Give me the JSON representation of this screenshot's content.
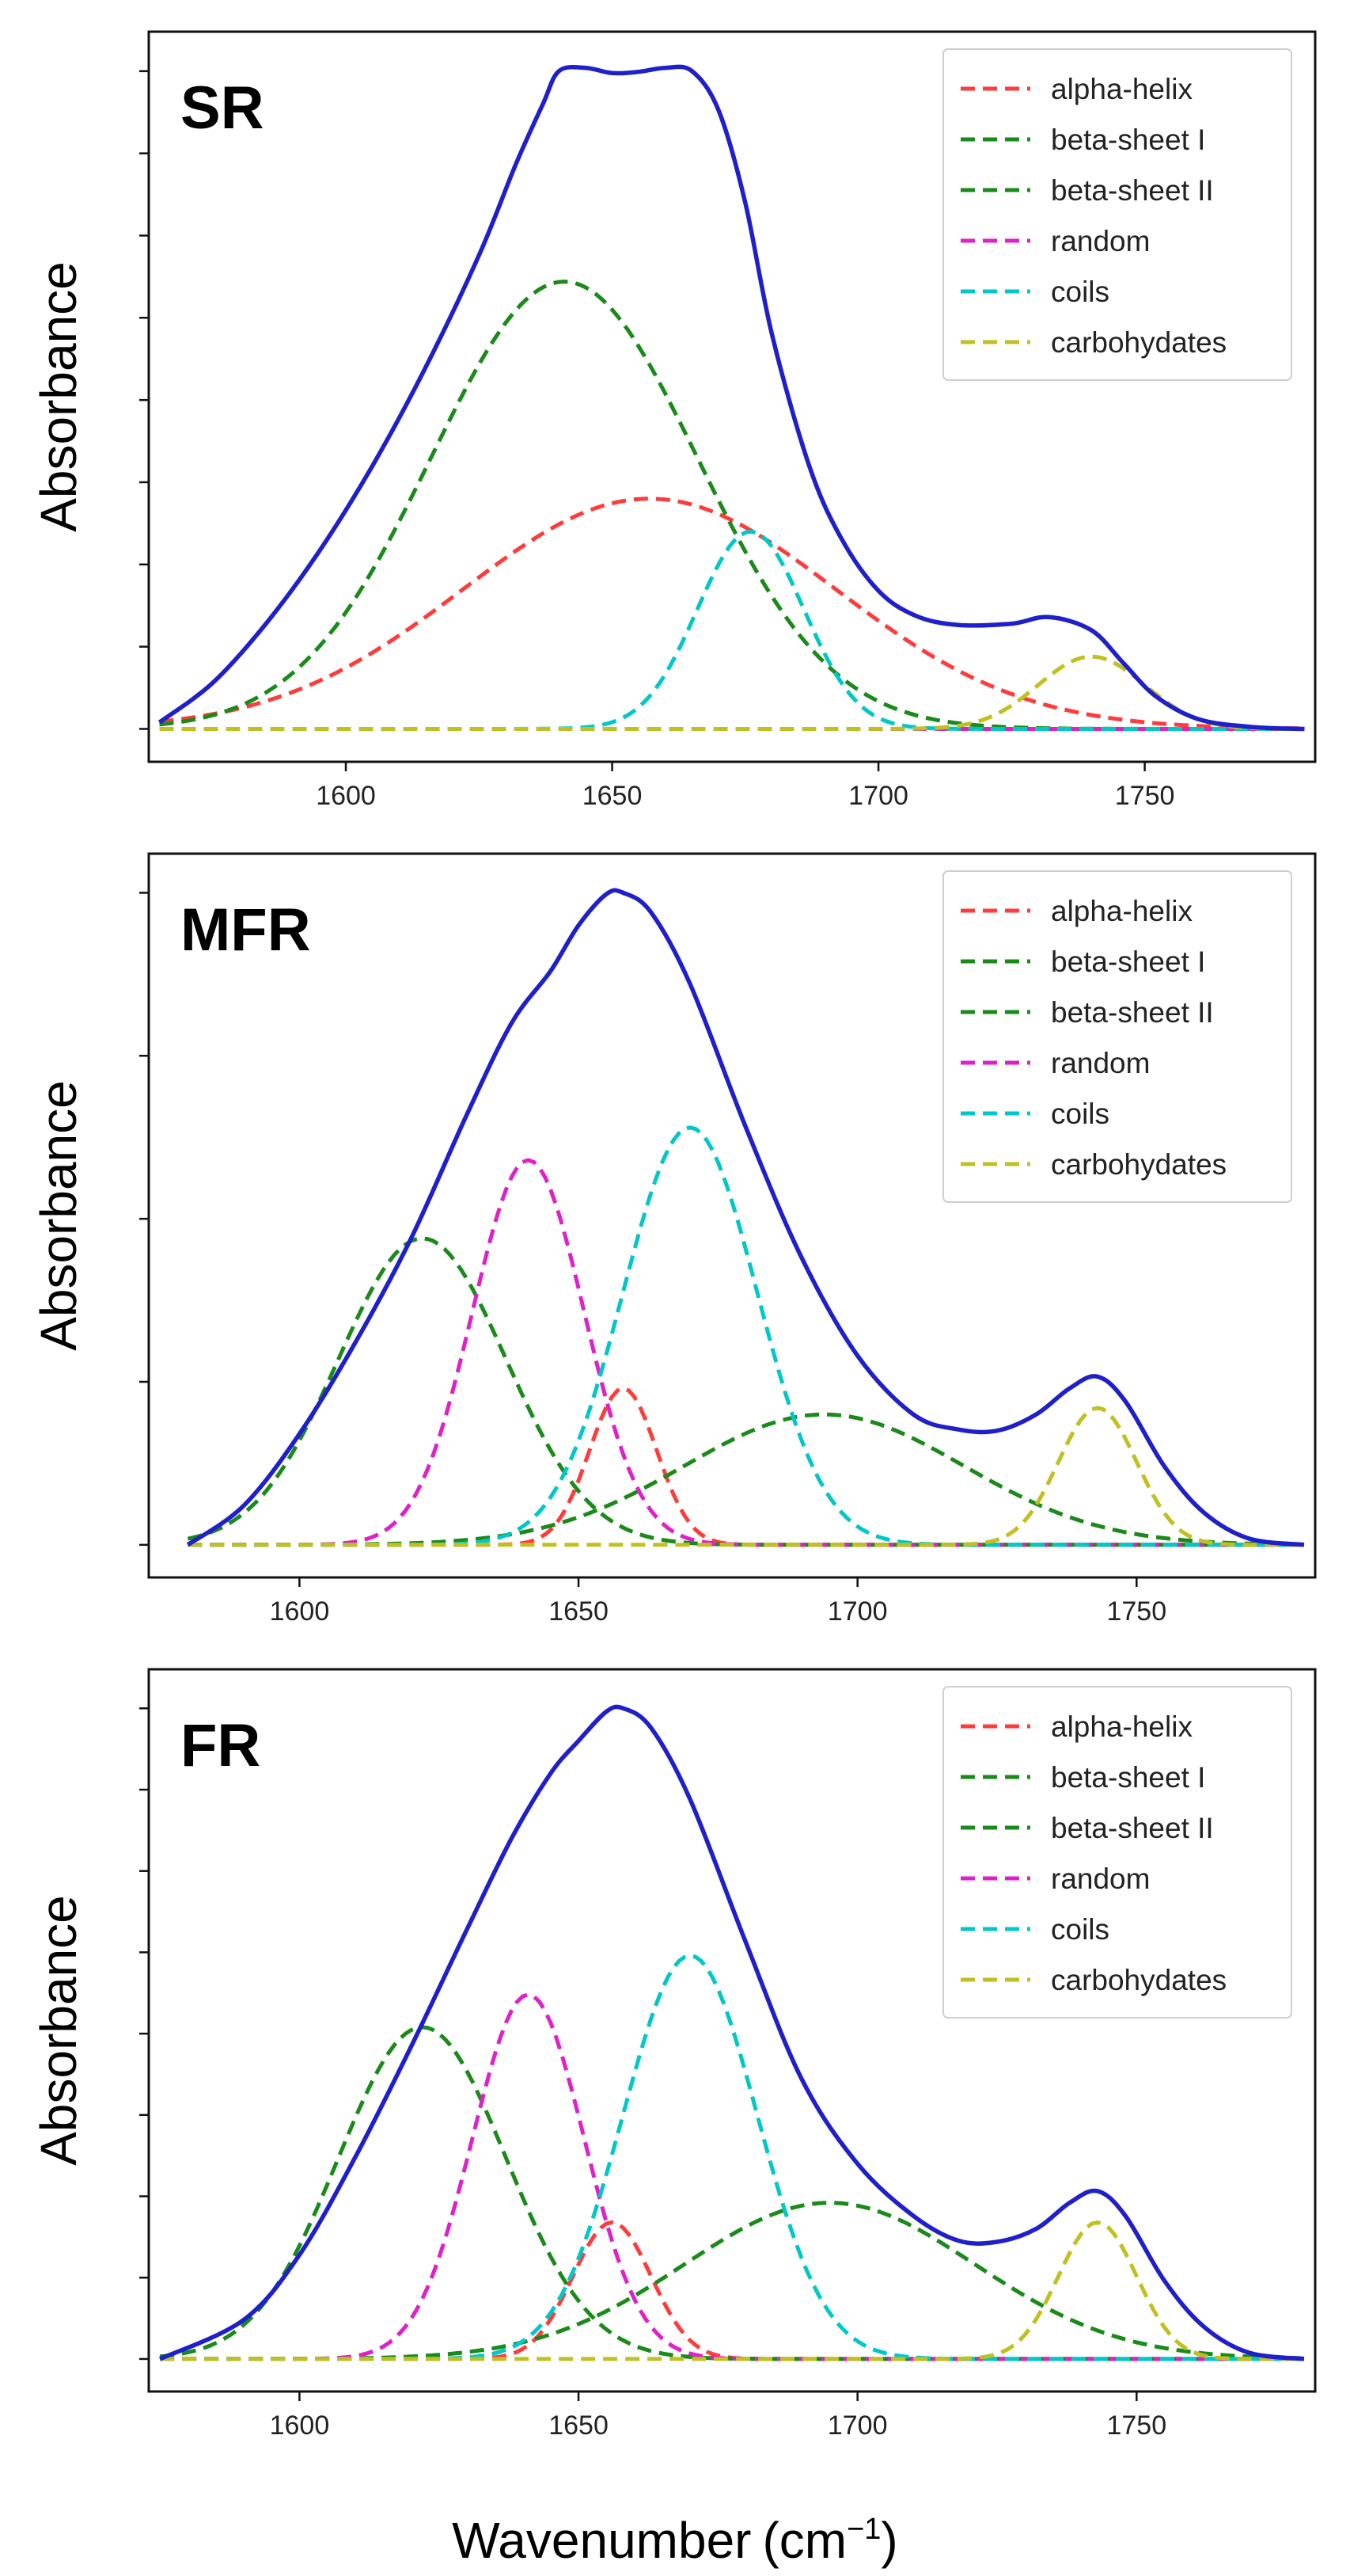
{
  "figure": {
    "ylabel": "Absorbance",
    "xlabel": "Wavenumber",
    "xunit_prefix": "(cm",
    "xunit_exp": "−1",
    "xunit_suffix": ")"
  },
  "colors": {
    "total": "#1f1fcc",
    "alpha-helix": "#ff3b3b",
    "beta-sheet I": "#1a8a1a",
    "beta-sheet II": "#1a8a1a",
    "random": "#e020c8",
    "coils": "#00c8c8",
    "carbohydates": "#c0c020"
  },
  "chart_data": [
    {
      "type": "line",
      "panel_label": "SR",
      "xlabel": "",
      "ylabel": "Absorbance",
      "xlim": [
        1563,
        1782
      ],
      "ylim": [
        -0.05,
        1.06
      ],
      "xticks": [
        "1600",
        "1650",
        "1700",
        "1750"
      ],
      "xtick_values": [
        1600,
        1650,
        1700,
        1750
      ],
      "ytick_count": 9,
      "legend_position": "top-right",
      "legend": [
        "alpha-helix",
        "beta-sheet I",
        "beta-sheet II",
        "random",
        "coils",
        "carbohydates"
      ],
      "total": [
        [
          1565,
          0.01
        ],
        [
          1575,
          0.07
        ],
        [
          1585,
          0.16
        ],
        [
          1595,
          0.27
        ],
        [
          1605,
          0.4
        ],
        [
          1615,
          0.55
        ],
        [
          1625,
          0.72
        ],
        [
          1632,
          0.86
        ],
        [
          1637,
          0.95
        ],
        [
          1640,
          1.0
        ],
        [
          1645,
          1.005
        ],
        [
          1650,
          0.997
        ],
        [
          1655,
          0.999
        ],
        [
          1660,
          1.005
        ],
        [
          1665,
          1.0
        ],
        [
          1670,
          0.94
        ],
        [
          1675,
          0.8
        ],
        [
          1680,
          0.6
        ],
        [
          1687,
          0.4
        ],
        [
          1693,
          0.29
        ],
        [
          1700,
          0.21
        ],
        [
          1707,
          0.172
        ],
        [
          1715,
          0.158
        ],
        [
          1725,
          0.16
        ],
        [
          1732,
          0.17
        ],
        [
          1740,
          0.15
        ],
        [
          1746,
          0.1
        ],
        [
          1752,
          0.05
        ],
        [
          1760,
          0.015
        ],
        [
          1770,
          0.003
        ],
        [
          1780,
          0.0
        ]
      ],
      "components": [
        {
          "name": "alpha-helix",
          "center": 1657,
          "height": 0.35,
          "width": 35
        },
        {
          "name": "beta-sheet I",
          "center": 1641,
          "height": 0.68,
          "width": 25
        },
        {
          "name": "beta-sheet II",
          "center": 1700,
          "height": 0.0,
          "width": 20
        },
        {
          "name": "random",
          "center": 1640,
          "height": 0.0,
          "width": 20
        },
        {
          "name": "coils",
          "center": 1676,
          "height": 0.3,
          "width": 10
        },
        {
          "name": "carbohydates",
          "center": 1740,
          "height": 0.11,
          "width": 10
        }
      ]
    },
    {
      "type": "line",
      "panel_label": "MFR",
      "xlabel": "",
      "ylabel": "Absorbance",
      "xlim": [
        1573,
        1782
      ],
      "ylim": [
        -0.05,
        1.06
      ],
      "xticks": [
        "1600",
        "1650",
        "1700",
        "1750"
      ],
      "xtick_values": [
        1600,
        1650,
        1700,
        1750
      ],
      "ytick_count": 5,
      "legend_position": "top-right",
      "legend": [
        "alpha-helix",
        "beta-sheet I",
        "beta-sheet II",
        "random",
        "coils",
        "carbohydates"
      ],
      "total": [
        [
          1580,
          0.0
        ],
        [
          1590,
          0.06
        ],
        [
          1600,
          0.17
        ],
        [
          1610,
          0.31
        ],
        [
          1620,
          0.47
        ],
        [
          1630,
          0.66
        ],
        [
          1638,
          0.8
        ],
        [
          1645,
          0.88
        ],
        [
          1650,
          0.95
        ],
        [
          1655,
          0.998
        ],
        [
          1658,
          1.0
        ],
        [
          1663,
          0.97
        ],
        [
          1670,
          0.86
        ],
        [
          1680,
          0.64
        ],
        [
          1690,
          0.44
        ],
        [
          1700,
          0.29
        ],
        [
          1710,
          0.2
        ],
        [
          1718,
          0.177
        ],
        [
          1725,
          0.175
        ],
        [
          1732,
          0.2
        ],
        [
          1738,
          0.24
        ],
        [
          1743,
          0.258
        ],
        [
          1748,
          0.22
        ],
        [
          1755,
          0.12
        ],
        [
          1762,
          0.05
        ],
        [
          1770,
          0.01
        ],
        [
          1780,
          0.0
        ]
      ],
      "components": [
        {
          "name": "alpha-helix",
          "center": 1658,
          "height": 0.24,
          "width": 6
        },
        {
          "name": "beta-sheet I",
          "center": 1622,
          "height": 0.47,
          "width": 15
        },
        {
          "name": "beta-sheet II",
          "center": 1694,
          "height": 0.2,
          "width": 25
        },
        {
          "name": "random",
          "center": 1641,
          "height": 0.59,
          "width": 10
        },
        {
          "name": "coils",
          "center": 1670,
          "height": 0.64,
          "width": 12
        },
        {
          "name": "carbohydates",
          "center": 1743,
          "height": 0.21,
          "width": 7
        }
      ]
    },
    {
      "type": "line",
      "panel_label": "FR",
      "xlabel": "Wavenumber (cm−1)",
      "ylabel": "Absorbance",
      "xlim": [
        1573,
        1782
      ],
      "ylim": [
        -0.05,
        1.06
      ],
      "xticks": [
        "1600",
        "1650",
        "1700",
        "1750"
      ],
      "xtick_values": [
        1600,
        1650,
        1700,
        1750
      ],
      "ytick_count": 9,
      "legend_position": "top-right",
      "legend": [
        "alpha-helix",
        "beta-sheet I",
        "beta-sheet II",
        "random",
        "coils",
        "carbohydates"
      ],
      "total": [
        [
          1575,
          0.0
        ],
        [
          1590,
          0.06
        ],
        [
          1600,
          0.16
        ],
        [
          1610,
          0.31
        ],
        [
          1620,
          0.48
        ],
        [
          1630,
          0.66
        ],
        [
          1638,
          0.8
        ],
        [
          1645,
          0.9
        ],
        [
          1650,
          0.95
        ],
        [
          1655,
          0.995
        ],
        [
          1658,
          1.0
        ],
        [
          1663,
          0.97
        ],
        [
          1670,
          0.86
        ],
        [
          1680,
          0.64
        ],
        [
          1690,
          0.43
        ],
        [
          1700,
          0.3
        ],
        [
          1710,
          0.22
        ],
        [
          1718,
          0.182
        ],
        [
          1725,
          0.18
        ],
        [
          1732,
          0.2
        ],
        [
          1738,
          0.24
        ],
        [
          1743,
          0.258
        ],
        [
          1748,
          0.22
        ],
        [
          1755,
          0.12
        ],
        [
          1762,
          0.05
        ],
        [
          1770,
          0.01
        ],
        [
          1780,
          0.0
        ]
      ],
      "components": [
        {
          "name": "alpha-helix",
          "center": 1656,
          "height": 0.21,
          "width": 7
        },
        {
          "name": "beta-sheet I",
          "center": 1622,
          "height": 0.51,
          "width": 15
        },
        {
          "name": "beta-sheet II",
          "center": 1695,
          "height": 0.24,
          "width": 26
        },
        {
          "name": "random",
          "center": 1641,
          "height": 0.56,
          "width": 10
        },
        {
          "name": "coils",
          "center": 1670,
          "height": 0.62,
          "width": 12
        },
        {
          "name": "carbohydates",
          "center": 1743,
          "height": 0.21,
          "width": 7
        }
      ]
    }
  ]
}
